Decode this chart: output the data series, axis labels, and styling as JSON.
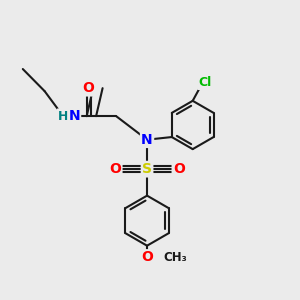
{
  "bg_color": "#ebebeb",
  "bond_color": "#1a1a1a",
  "bond_width": 1.5,
  "atom_colors": {
    "N": "#0000ff",
    "O": "#ff0000",
    "S": "#cccc00",
    "Cl": "#00bb00",
    "H": "#008080",
    "C": "#1a1a1a"
  },
  "figsize": [
    3.0,
    3.0
  ],
  "dpi": 100
}
